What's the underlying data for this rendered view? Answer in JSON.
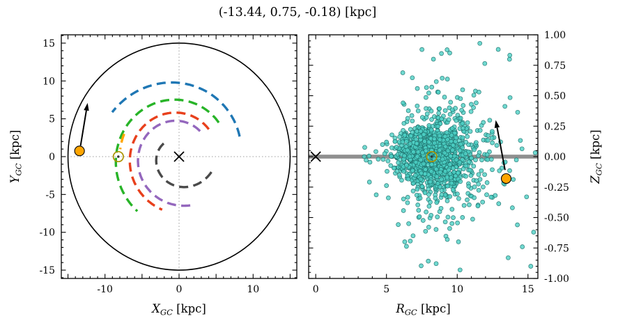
{
  "figure": {
    "title": "(-13.44, 0.75, -0.18) [kpc]"
  },
  "chart_data": [
    {
      "id": "face_on",
      "type": "scatter",
      "description": "Face-on Milky Way map with dashed spiral arms, galactic center cross, Sun symbol and cluster position with velocity arrow",
      "xlabel": {
        "main": "X",
        "sub": "GC",
        "unit": " [kpc]"
      },
      "ylabel": {
        "main": "Y",
        "sub": "GC",
        "unit": " [kpc]"
      },
      "xlim": [
        -15.9,
        15.9
      ],
      "ylim": [
        -16.1,
        16.1
      ],
      "xtick_step_major": 5,
      "xtick_step_minor": 1,
      "ytick_step_major": 5,
      "ytick_step_minor": 1,
      "xtick_labels": [
        {
          "v": -10,
          "t": "-10"
        },
        {
          "v": 0,
          "t": "0"
        },
        {
          "v": 10,
          "t": "10"
        }
      ],
      "ytick_labels": [
        {
          "v": -15,
          "t": "-15"
        },
        {
          "v": -10,
          "t": "-10"
        },
        {
          "v": -5,
          "t": "-5"
        },
        {
          "v": 0,
          "t": "0"
        },
        {
          "v": 5,
          "t": "5"
        },
        {
          "v": 10,
          "t": "10"
        },
        {
          "v": 15,
          "t": "15"
        }
      ],
      "crosshair_color": "#9c9c9c",
      "disk_circle": {
        "radius": 15,
        "color": "#000000"
      },
      "galactic_center": {
        "x": 0,
        "y": 0,
        "marker": "x"
      },
      "sun": {
        "x": -8.2,
        "y": 0,
        "marker": "circled-dot",
        "color": "#ab9200"
      },
      "cluster": {
        "x": -13.44,
        "y": 0.75,
        "color": "#FFA500"
      },
      "arrow": {
        "x1": -13.3,
        "y1": 1.45,
        "x2": -12.35,
        "y2": 7.1
      },
      "spiral_arms": [
        {
          "name": "blue",
          "color": "#1f77b4",
          "r0": 8.6,
          "theta0": 18,
          "theta1": 148,
          "pitch": 0.1
        },
        {
          "name": "green",
          "color": "#28b428",
          "r0": 7.0,
          "theta0": 40,
          "theta1": 232,
          "pitch": 0.08
        },
        {
          "name": "red",
          "color": "#e8401c",
          "r0": 5.4,
          "theta0": 42,
          "theta1": 252,
          "pitch": 0.085
        },
        {
          "name": "purple",
          "color": "#9467bd",
          "r0": 4.4,
          "theta0": 50,
          "theta1": 286,
          "pitch": 0.1
        },
        {
          "name": "gray",
          "color": "#4a4a4a",
          "r0": 2.7,
          "theta0": 140,
          "theta1": 335,
          "pitch": 0.17
        },
        {
          "name": "orange-local",
          "color": "#FFA500",
          "r0": 8.0,
          "theta0": 158,
          "theta1": 174,
          "pitch": 0.0
        }
      ]
    },
    {
      "id": "edge_on",
      "type": "scatter",
      "description": "Edge-on view: cluster member stars R_GC vs Z_GC around the disk midplane",
      "xlabel": {
        "main": "R",
        "sub": "GC",
        "unit": " [kpc]"
      },
      "ylabel": {
        "main": "Z",
        "sub": "GC",
        "unit": " [kpc]"
      },
      "xlim": [
        -0.5,
        15.7
      ],
      "ylim": [
        -1.0,
        1.0
      ],
      "xtick_step_major": 5,
      "xtick_step_minor": 1,
      "ytick_step_major": 0.25,
      "ytick_step_minor": 0.05,
      "xtick_labels": [
        {
          "v": 0,
          "t": "0"
        },
        {
          "v": 5,
          "t": "5"
        },
        {
          "v": 10,
          "t": "10"
        },
        {
          "v": 15,
          "t": "15"
        }
      ],
      "ytick_labels": [
        {
          "v": -1,
          "t": "-1.00"
        },
        {
          "v": -0.75,
          "t": "-0.75"
        },
        {
          "v": -0.5,
          "t": "-0.50"
        },
        {
          "v": -0.25,
          "t": "-0.25"
        },
        {
          "v": 0,
          "t": "0.00"
        },
        {
          "v": 0.25,
          "t": "0.25"
        },
        {
          "v": 0.5,
          "t": "0.50"
        },
        {
          "v": 0.75,
          "t": "0.75"
        },
        {
          "v": 1,
          "t": "1.00"
        }
      ],
      "y_axis_side": "right",
      "midplane_band": {
        "z": 0,
        "half_width": 0.016,
        "color": "#8f8f8f"
      },
      "galactic_center": {
        "x": 0,
        "y": 0,
        "marker": "x"
      },
      "sun": {
        "x": 8.2,
        "y": 0,
        "marker": "circled-dot",
        "color": "#ab9200"
      },
      "cluster": {
        "x": 13.46,
        "y": -0.18,
        "color": "#FFA500"
      },
      "arrow": {
        "x1": 13.38,
        "y1": -0.11,
        "x2": 12.72,
        "y2": 0.3
      },
      "scatter_style": {
        "fill": "#4ccfc4",
        "edge": "#1d6f6a",
        "radius_px": 3,
        "opacity": 0.8
      },
      "points_distribution": {
        "n": 1300,
        "seed": 7,
        "r_core": {
          "mean": 8.25,
          "sigma": 1.25,
          "weight": 0.8
        },
        "r_tail": {
          "mean": 9.3,
          "sigma": 2.6,
          "weight": 0.2
        },
        "z_sigma_base": 0.07,
        "z_flare_per_kpc": 0.022,
        "flare_start_r": 5,
        "halo_fraction": 0.12,
        "halo_z_multiplier": 3.5,
        "r_range": [
          3.0,
          15.6
        ],
        "z_range": [
          -0.99,
          0.99
        ]
      },
      "outlier_points": [
        [
          13.6,
          -0.83
        ],
        [
          14.6,
          -0.74
        ],
        [
          15.2,
          -0.9
        ],
        [
          13.9,
          -0.42
        ],
        [
          14.25,
          -0.56
        ],
        [
          12.9,
          0.88
        ],
        [
          11.6,
          0.93
        ],
        [
          10.2,
          -0.93
        ],
        [
          14.9,
          -0.33
        ],
        [
          15.4,
          -0.62
        ]
      ]
    }
  ]
}
